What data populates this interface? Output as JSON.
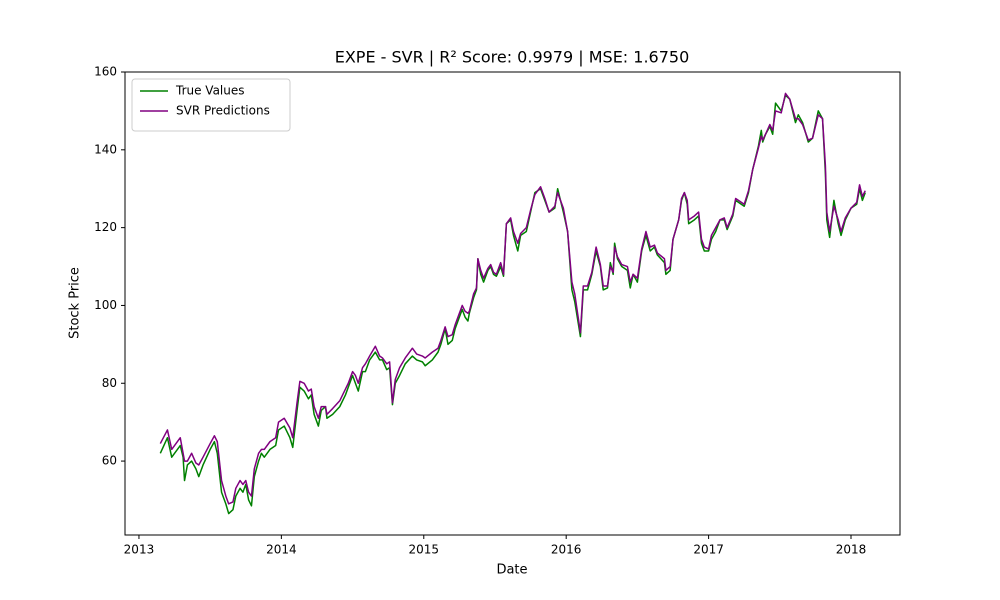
{
  "chart_data": {
    "type": "line",
    "title": "EXPE - SVR | R² Score: 0.9979 | MSE: 1.6750",
    "xlabel": "Date",
    "ylabel": "Stock Price",
    "legend": "upper left",
    "xlim": [
      2012.902,
      2018.344
    ],
    "xticks": [
      2013,
      2014,
      2015,
      2016,
      2017,
      2018
    ],
    "ylim": [
      41,
      160
    ],
    "yticks": [
      60,
      80,
      100,
      120,
      140,
      160
    ],
    "x": [
      2013.15,
      2013.2,
      2013.23,
      2013.29,
      2013.31,
      2013.32,
      2013.34,
      2013.37,
      2013.4,
      2013.42,
      2013.45,
      2013.5,
      2013.53,
      2013.55,
      2013.58,
      2013.61,
      2013.63,
      2013.66,
      2013.68,
      2013.71,
      2013.73,
      2013.75,
      2013.77,
      2013.79,
      2013.81,
      2013.84,
      2013.86,
      2013.88,
      2013.92,
      2013.96,
      2013.98,
      2014.02,
      2014.06,
      2014.08,
      2014.11,
      2014.13,
      2014.16,
      2014.19,
      2014.21,
      2014.23,
      2014.26,
      2014.28,
      2014.31,
      2014.32,
      2014.36,
      2014.41,
      2014.45,
      2014.47,
      2014.5,
      2014.52,
      2014.54,
      2014.57,
      2014.59,
      2014.62,
      2014.66,
      2014.69,
      2014.71,
      2014.74,
      2014.76,
      2014.78,
      2014.8,
      2014.83,
      2014.87,
      2014.92,
      2014.95,
      2014.99,
      2015.01,
      2015.06,
      2015.1,
      2015.12,
      2015.15,
      2015.17,
      2015.2,
      2015.22,
      2015.25,
      2015.27,
      2015.29,
      2015.31,
      2015.32,
      2015.35,
      2015.37,
      2015.38,
      2015.4,
      2015.42,
      2015.45,
      2015.47,
      2015.49,
      2015.51,
      2015.54,
      2015.56,
      2015.58,
      2015.61,
      2015.63,
      2015.66,
      2015.68,
      2015.72,
      2015.75,
      2015.78,
      2015.82,
      2015.85,
      2015.88,
      2015.92,
      2015.94,
      2015.98,
      2016.01,
      2016.04,
      2016.06,
      2016.1,
      2016.12,
      2016.15,
      2016.18,
      2016.21,
      2016.24,
      2016.26,
      2016.29,
      2016.31,
      2016.33,
      2016.34,
      2016.36,
      2016.39,
      2016.43,
      2016.45,
      2016.47,
      2016.5,
      2016.53,
      2016.56,
      2016.59,
      2016.62,
      2016.64,
      2016.69,
      2016.7,
      2016.73,
      2016.75,
      2016.79,
      2016.81,
      2016.83,
      2016.85,
      2016.86,
      2016.9,
      2016.93,
      2016.95,
      2016.97,
      2017.0,
      2017.02,
      2017.05,
      2017.08,
      2017.11,
      2017.13,
      2017.17,
      2017.19,
      2017.25,
      2017.28,
      2017.31,
      2017.35,
      2017.37,
      2017.38,
      2017.4,
      2017.43,
      2017.45,
      2017.47,
      2017.51,
      2017.54,
      2017.57,
      2017.61,
      2017.63,
      2017.66,
      2017.7,
      2017.73,
      2017.77,
      2017.8,
      2017.82,
      2017.83,
      2017.85,
      2017.88,
      2017.91,
      2017.93,
      2017.96,
      2018.0,
      2018.04,
      2018.06,
      2018.08,
      2018.1
    ],
    "series": [
      {
        "name": "True Values",
        "color": "green",
        "values": [
          62,
          66,
          61,
          64,
          61,
          55,
          59,
          60,
          58,
          56,
          59,
          63,
          65,
          62,
          52,
          49,
          46.5,
          47.5,
          51,
          53,
          52,
          54,
          50,
          48.5,
          56,
          60,
          62,
          61,
          63,
          64,
          68,
          69,
          66,
          63.5,
          73,
          79,
          78,
          76,
          77,
          72,
          69,
          73,
          74,
          71,
          72,
          74,
          77,
          79,
          82,
          80,
          78,
          83,
          83,
          86,
          88,
          86,
          86,
          83.5,
          84,
          74.5,
          80,
          82,
          85,
          87,
          86,
          85.5,
          84.5,
          86,
          88,
          90,
          94,
          90,
          91,
          94,
          97,
          99,
          97,
          96,
          98,
          102,
          104,
          112,
          108,
          106,
          109,
          110,
          108,
          107.5,
          110,
          107.5,
          121,
          122,
          118,
          114,
          118,
          119,
          124,
          129,
          130,
          127,
          124,
          125,
          130,
          124,
          119,
          104,
          101,
          92,
          104,
          104,
          108,
          114,
          110,
          104,
          104.5,
          111,
          108,
          116,
          112,
          110,
          109,
          104.5,
          108,
          106,
          114,
          118,
          114,
          115,
          113,
          111,
          108,
          109,
          117,
          122,
          127,
          129,
          126,
          121,
          122,
          123,
          116,
          114,
          114,
          117,
          119,
          122,
          122,
          119.5,
          123,
          127,
          125.5,
          129,
          135,
          141,
          145,
          142,
          144,
          146,
          144,
          152,
          150,
          154,
          153,
          147,
          149,
          147,
          142,
          143,
          150,
          148,
          134,
          122,
          117.5,
          127,
          121,
          118,
          122,
          125,
          126,
          130,
          127,
          129
        ]
      },
      {
        "name": "SVR Predictions",
        "color": "purple",
        "values": [
          64.5,
          68,
          63,
          66,
          62,
          60,
          60,
          62,
          59.5,
          59,
          61,
          64.5,
          66.5,
          65,
          55,
          51,
          49,
          49.5,
          53,
          55,
          54,
          55,
          52,
          51,
          58,
          62,
          63,
          63,
          65,
          66,
          70,
          71,
          68.5,
          66,
          75,
          80.5,
          80,
          78,
          78.5,
          74,
          71,
          74,
          74,
          72,
          73.5,
          75.5,
          78.5,
          80,
          83,
          82,
          80,
          84,
          85,
          87,
          89.5,
          87,
          86.5,
          85,
          85.5,
          75,
          81,
          84,
          86.5,
          89,
          87.5,
          87,
          86.5,
          88,
          89,
          91,
          94.5,
          92,
          92.5,
          95,
          98,
          100,
          98.5,
          98,
          98.5,
          103,
          104.5,
          112,
          109,
          107,
          109.5,
          110.5,
          108.5,
          108,
          111,
          108,
          121,
          122.5,
          119,
          116,
          118.5,
          120,
          124.5,
          128.5,
          130.5,
          127.5,
          124,
          125.5,
          129,
          125,
          119,
          106,
          103,
          93,
          105,
          105,
          108.5,
          115,
          110.5,
          105,
          105,
          110,
          108.5,
          115,
          112.5,
          110.5,
          110,
          106,
          108,
          107,
          114.5,
          119,
          115,
          115.5,
          113.5,
          112,
          109,
          110,
          117,
          122,
          127.5,
          129,
          127,
          122,
          123,
          124,
          117,
          115,
          114.5,
          118,
          120,
          122,
          122.5,
          120,
          123.5,
          127.5,
          126,
          129.5,
          135,
          140.5,
          143.5,
          142.5,
          144,
          146.5,
          145,
          150,
          149.5,
          154.5,
          153,
          148,
          148,
          146.5,
          142.5,
          143,
          149,
          148,
          136,
          124,
          119,
          125.5,
          122,
          119,
          122.5,
          125,
          126.5,
          131,
          128,
          129.5
        ]
      }
    ]
  }
}
